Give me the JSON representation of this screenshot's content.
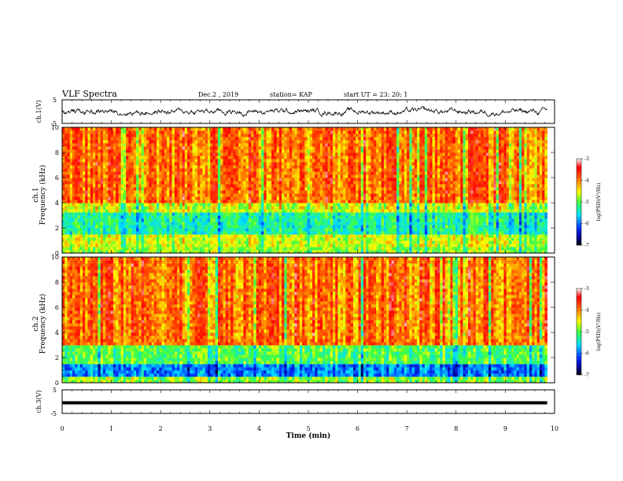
{
  "header": {
    "title": "VLF Spectra",
    "date": "Dec.2 , 2019",
    "station": "station= KAP",
    "start_ut": "start UT = 23: 20: 1"
  },
  "chart_data": [
    {
      "type": "line",
      "panel": "waveform-ch1",
      "ylabel": "ch.1(V)",
      "ylim": [
        -5,
        5
      ],
      "yticks": [
        "5",
        "-5"
      ],
      "x_range": [
        0,
        9.85
      ],
      "mean_y": 0.0,
      "amplitude_y": 1.6,
      "color": "#000000"
    },
    {
      "type": "heatmap",
      "panel": "spectrogram-ch1",
      "ylabel": "ch.1\nFrequency (kHz)",
      "ylim": [
        0,
        10
      ],
      "yticks": [
        "0",
        "2",
        "4",
        "6",
        "8",
        "10"
      ],
      "x_range": [
        0,
        9.85
      ],
      "dominant_levels": [
        {
          "f_range": [
            0,
            0.5
          ],
          "log_psd": -4.8
        },
        {
          "f_range": [
            0.5,
            1.5
          ],
          "log_psd": -4.6
        },
        {
          "f_range": [
            1.5,
            3.2
          ],
          "log_psd": -5.3
        },
        {
          "f_range": [
            3.2,
            4.0
          ],
          "log_psd": -4.6
        },
        {
          "f_range": [
            4.0,
            10
          ],
          "log_psd": -3.9
        }
      ],
      "colorbar": {
        "label": "log(PSD)(V²/Hz)",
        "range": [
          -7,
          -3
        ],
        "ticks": [
          "-3",
          "-4",
          "-5",
          "-6",
          "-7"
        ]
      }
    },
    {
      "type": "heatmap",
      "panel": "spectrogram-ch2",
      "ylabel": "ch.2\nFrequency (kHz)",
      "ylim": [
        0,
        10
      ],
      "yticks": [
        "0",
        "2",
        "4",
        "6",
        "8",
        "10"
      ],
      "x_range": [
        0,
        9.85
      ],
      "dominant_levels": [
        {
          "f_range": [
            0,
            0.5
          ],
          "log_psd": -4.8
        },
        {
          "f_range": [
            0.5,
            1.6
          ],
          "log_psd": -5.9
        },
        {
          "f_range": [
            1.6,
            3.1
          ],
          "log_psd": -5.0
        },
        {
          "f_range": [
            3.1,
            10
          ],
          "log_psd": -3.9
        }
      ],
      "colorbar": {
        "label": "log(PSD)(V²/Hz)",
        "range": [
          -7,
          -3
        ],
        "ticks": [
          "-3",
          "-4",
          "-5",
          "-6",
          "-7"
        ]
      }
    },
    {
      "type": "line",
      "panel": "waveform-ch3",
      "ylabel": "ch.3(V)",
      "ylim": [
        -5,
        5
      ],
      "yticks": [
        "5",
        "-5"
      ],
      "x_range": [
        0,
        9.85
      ],
      "mean_y": -0.5,
      "amplitude_y": 0.0,
      "color": "#000000"
    }
  ],
  "xaxis": {
    "label": "Time (min)",
    "xlim": [
      0,
      10
    ],
    "ticks": [
      "0",
      "1",
      "2",
      "3",
      "4",
      "5",
      "6",
      "7",
      "8",
      "9",
      "10"
    ]
  }
}
